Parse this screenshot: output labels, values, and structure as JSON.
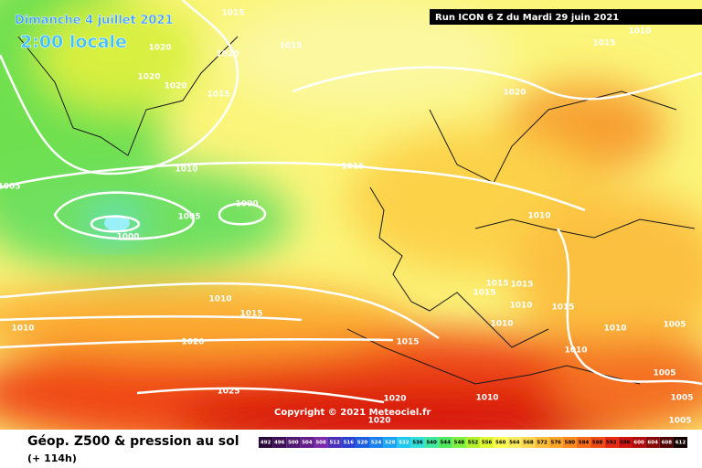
{
  "header": {
    "date": "Dimanche 4 juillet 2021",
    "time": "2:00 locale",
    "run": "Run ICON 6 Z du Mardi 29 juin 2021"
  },
  "copyright": "Copyright © 2021 Meteociel.fr",
  "footer": {
    "title": "Géop. Z500 & pression au sol",
    "lead": "(+ 114h)"
  },
  "isobar_labels": [
    1015,
    1015,
    1020,
    1020,
    1020,
    1020,
    1015,
    1010,
    1015,
    1020,
    1010,
    1015,
    1005,
    1005,
    1000,
    1000,
    1010,
    1010,
    1015,
    1010,
    1015,
    1015,
    1015,
    1010,
    1015,
    1010,
    1005,
    1010,
    1015,
    1020,
    1010,
    1005,
    1025,
    1020,
    1010,
    1005,
    1005,
    1020
  ],
  "scale": [
    {
      "value": 492,
      "color": "#2a0a3a"
    },
    {
      "value": 496,
      "color": "#3c0f55"
    },
    {
      "value": 500,
      "color": "#501870"
    },
    {
      "value": 504,
      "color": "#63208a"
    },
    {
      "value": 508,
      "color": "#7a2aa6"
    },
    {
      "value": 512,
      "color": "#4a2fb8"
    },
    {
      "value": 516,
      "color": "#2b3fd0"
    },
    {
      "value": 520,
      "color": "#1e5ce0"
    },
    {
      "value": 524,
      "color": "#1a80ee"
    },
    {
      "value": 528,
      "color": "#18a4f2"
    },
    {
      "value": 532,
      "color": "#20c8f0"
    },
    {
      "value": 536,
      "color": "#30e0d8"
    },
    {
      "value": 540,
      "color": "#40e8a0"
    },
    {
      "value": 544,
      "color": "#50e860"
    },
    {
      "value": 548,
      "color": "#7ef040"
    },
    {
      "value": 552,
      "color": "#b0f030"
    },
    {
      "value": 556,
      "color": "#e0f830"
    },
    {
      "value": 560,
      "color": "#fbfb50"
    },
    {
      "value": 564,
      "color": "#fcec60"
    },
    {
      "value": 568,
      "color": "#fcd850"
    },
    {
      "value": 572,
      "color": "#fcbe38"
    },
    {
      "value": 576,
      "color": "#fca428"
    },
    {
      "value": 580,
      "color": "#fa8a20"
    },
    {
      "value": 584,
      "color": "#f66c18"
    },
    {
      "value": 588,
      "color": "#f04a14"
    },
    {
      "value": 592,
      "color": "#e62a12"
    },
    {
      "value": 596,
      "color": "#d01410"
    },
    {
      "value": 600,
      "color": "#b00c0c"
    },
    {
      "value": 604,
      "color": "#880808"
    },
    {
      "value": 608,
      "color": "#500404"
    },
    {
      "value": 612,
      "color": "#100000"
    }
  ]
}
